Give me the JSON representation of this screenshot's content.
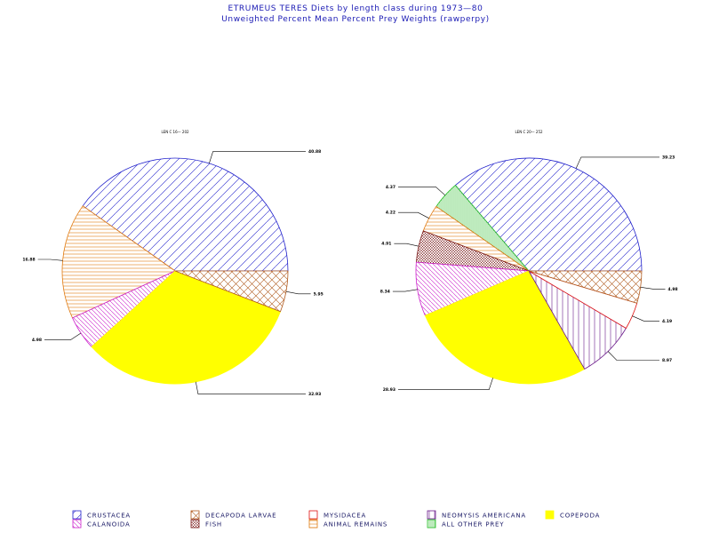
{
  "title": "ETRUMEUS  TERES  Diets  by  length  class  during  1973—80",
  "subtitle": "Unweighted  Percent  Mean  Percent  Prey   Weights  (rawperpy)",
  "legend": [
    {
      "key": "crustacea",
      "label": "CRUSTACEA",
      "color": "#2222cc",
      "pattern": "diag"
    },
    {
      "key": "calanoida",
      "label": "CALANOIDA",
      "color": "#cc22cc",
      "pattern": "diag-rev"
    },
    {
      "key": "decapoda",
      "label": "DECAPODA  LARVAE",
      "color": "#b05a1e",
      "pattern": "cross"
    },
    {
      "key": "fish",
      "label": "FISH",
      "color": "#7a1a1a",
      "pattern": "cross-dense"
    },
    {
      "key": "mysidacea",
      "label": "MYSIDACEA",
      "color": "#e01010",
      "pattern": "hollow"
    },
    {
      "key": "animal",
      "label": "ANIMAL  REMAINS",
      "color": "#e07a10",
      "pattern": "horiz"
    },
    {
      "key": "neomysis",
      "label": "NEOMYSIS  AMERICANA",
      "color": "#6a1a8a",
      "pattern": "vert"
    },
    {
      "key": "other",
      "label": "ALL  OTHER  PREY",
      "color": "#22bb22",
      "pattern": "vert-dense"
    },
    {
      "key": "copepoda",
      "label": "COPEPODA",
      "color": "#ffff00",
      "pattern": "solid"
    }
  ],
  "chart_data": [
    {
      "type": "pie",
      "caption": "LEN C 16— 202",
      "slices": [
        {
          "key": "crustacea",
          "value": 40.88,
          "label": "40.88"
        },
        {
          "key": "animal",
          "value": 16.88,
          "label": "16.88"
        },
        {
          "key": "calanoida",
          "value": 4.98,
          "label": "4.98"
        },
        {
          "key": "copepoda",
          "value": 32.93,
          "label": "32.93"
        },
        {
          "key": "decapoda",
          "value": 5.95,
          "label": "5.95"
        }
      ]
    },
    {
      "type": "pie",
      "caption": "LEN C 20— 252",
      "slices": [
        {
          "key": "crustacea",
          "value": 39.23,
          "label": "39.23"
        },
        {
          "key": "other",
          "value": 4.37,
          "label": "4.37"
        },
        {
          "key": "animal",
          "value": 4.22,
          "label": "4.22"
        },
        {
          "key": "fish",
          "value": 4.91,
          "label": "4.91"
        },
        {
          "key": "calanoida",
          "value": 8.34,
          "label": "8.34"
        },
        {
          "key": "copepoda",
          "value": 28.93,
          "label": "28.93"
        },
        {
          "key": "neomysis",
          "value": 8.97,
          "label": "8.97"
        },
        {
          "key": "mysidacea",
          "value": 4.19,
          "label": "4.19"
        },
        {
          "key": "decapoda",
          "value": 4.98,
          "label": "4.98"
        }
      ]
    }
  ]
}
